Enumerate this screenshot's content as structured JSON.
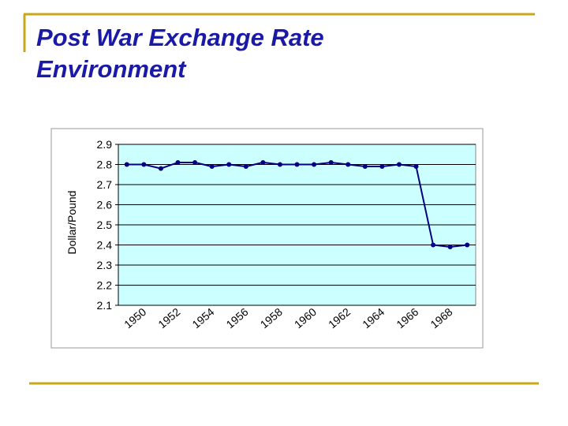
{
  "chart_data": {
    "type": "line",
    "title": "Post War Exchange Rate Environment",
    "y_label": "Dollar/Pound",
    "categories": [
      null,
      "1950",
      null,
      "1952",
      null,
      "1954",
      null,
      "1956",
      null,
      "1958",
      null,
      "1960",
      null,
      "1962",
      null,
      "1964",
      null,
      "1966",
      null,
      "1968",
      null
    ],
    "series": [
      {
        "name": "Dollar/Pound",
        "color": "#000080",
        "values": [
          2.8,
          2.8,
          2.78,
          2.81,
          2.81,
          2.79,
          2.8,
          2.79,
          2.81,
          2.8,
          2.8,
          2.8,
          2.81,
          2.8,
          2.79,
          2.79,
          2.8,
          2.79,
          2.4,
          2.39,
          2.4
        ]
      }
    ],
    "ylim": [
      2.1,
      2.9
    ],
    "yticks": [
      2.1,
      2.2,
      2.3,
      2.4,
      2.5,
      2.6,
      2.7,
      2.8,
      2.9
    ],
    "grid": true,
    "background": "#ccffff"
  }
}
